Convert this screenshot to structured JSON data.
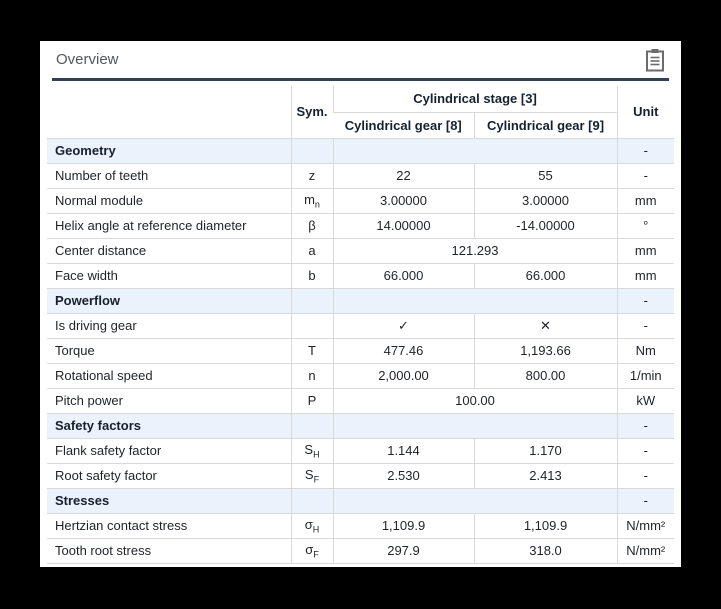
{
  "theme": {
    "accent": "#334155",
    "section_bg": "#eaf2fb",
    "border": "#d9d9d9",
    "page_bg": "#000000",
    "card_bg": "#ffffff",
    "title_text": "#53575e"
  },
  "card": {
    "title": "Overview",
    "title_icon": "clipboard-report-icon"
  },
  "table": {
    "header": {
      "sym": "Sym.",
      "stage": "Cylindrical stage [3]",
      "gear_left": "Cylindrical gear [8]",
      "gear_right": "Cylindrical gear [9]",
      "unit": "Unit"
    },
    "rows": [
      {
        "type": "section",
        "label": "Geometry",
        "sym": "",
        "sub": "",
        "unit": "-"
      },
      {
        "type": "data",
        "label": "Number of teeth",
        "sym": "z",
        "sub": "",
        "v8": "22",
        "v9": "55",
        "unit": "-"
      },
      {
        "type": "data",
        "label": "Normal module",
        "sym": "m",
        "sub": "n",
        "v8": "3.00000",
        "v9": "3.00000",
        "unit": "mm"
      },
      {
        "type": "data",
        "label": "Helix angle at reference diameter",
        "sym": "β",
        "sub": "",
        "v8": "14.00000",
        "v9": "-14.00000",
        "unit": "°"
      },
      {
        "type": "merged",
        "label": "Center distance",
        "sym": "a",
        "sub": "",
        "value": "121.293",
        "unit": "mm"
      },
      {
        "type": "data",
        "label": "Face width",
        "sym": "b",
        "sub": "",
        "v8": "66.000",
        "v9": "66.000",
        "unit": "mm"
      },
      {
        "type": "section",
        "label": "Powerflow",
        "sym": "",
        "sub": "",
        "unit": "-"
      },
      {
        "type": "data",
        "label": "Is driving gear",
        "sym": "",
        "sub": "",
        "v8": "✓",
        "v9": "✕",
        "unit": "-"
      },
      {
        "type": "data",
        "label": "Torque",
        "sym": "T",
        "sub": "",
        "v8": "477.46",
        "v9": "1,193.66",
        "unit": "Nm"
      },
      {
        "type": "data",
        "label": "Rotational speed",
        "sym": "n",
        "sub": "",
        "v8": "2,000.00",
        "v9": "800.00",
        "unit": "1/min"
      },
      {
        "type": "merged",
        "label": "Pitch power",
        "sym": "P",
        "sub": "",
        "value": "100.00",
        "unit": "kW"
      },
      {
        "type": "section",
        "label": "Safety factors",
        "sym": "",
        "sub": "",
        "unit": "-"
      },
      {
        "type": "data",
        "label": "Flank safety factor",
        "sym": "S",
        "sub": "H",
        "v8": "1.144",
        "v9": "1.170",
        "unit": "-"
      },
      {
        "type": "data",
        "label": "Root safety factor",
        "sym": "S",
        "sub": "F",
        "v8": "2.530",
        "v9": "2.413",
        "unit": "-"
      },
      {
        "type": "section",
        "label": "Stresses",
        "sym": "",
        "sub": "",
        "unit": "-"
      },
      {
        "type": "data",
        "label": "Hertzian contact stress",
        "sym": "σ",
        "sub": "H",
        "v8": "1,109.9",
        "v9": "1,109.9",
        "unit": "N/mm²"
      },
      {
        "type": "data",
        "label": "Tooth root stress",
        "sym": "σ",
        "sub": "F",
        "v8": "297.9",
        "v9": "318.0",
        "unit": "N/mm²"
      }
    ]
  }
}
